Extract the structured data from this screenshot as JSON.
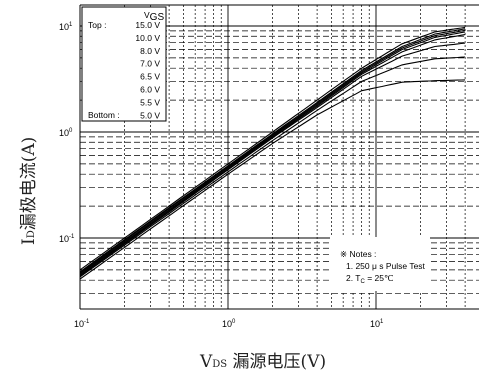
{
  "chart_data": {
    "type": "line",
    "x_scale": "log",
    "y_scale": "log",
    "xlim": [
      0.1,
      40
    ],
    "ylim": [
      0.02,
      17
    ],
    "grid": true,
    "xlabel": {
      "main": "V",
      "sub": "DS",
      "rest": " 漏源电压(V)"
    },
    "ylabel": {
      "main": "I",
      "sub": "D",
      "rest": "漏极电流(A)"
    },
    "x_ticks": [
      {
        "value": 0.1,
        "base": "10",
        "exp": "-1"
      },
      {
        "value": 1,
        "base": "10",
        "exp": "0"
      },
      {
        "value": 10,
        "base": "10",
        "exp": "1"
      }
    ],
    "y_ticks": [
      {
        "value": 0.1,
        "base": "10",
        "exp": "-1"
      },
      {
        "value": 1,
        "base": "10",
        "exp": "0"
      },
      {
        "value": 10,
        "base": "10",
        "exp": "1"
      }
    ],
    "legend": {
      "placement": "top-left",
      "header": "V",
      "header_sub": "GS",
      "top_label": "Top :",
      "bottom_label": "Bottom :",
      "entries": [
        "15.0 V",
        "10.0 V",
        "8.0 V",
        "7.0 V",
        "6.5 V",
        "6.0 V",
        "5.5 V",
        "5.0 V"
      ]
    },
    "notes": {
      "title": "※ Notes :",
      "line1": "1. 250 μ s Pulse Test",
      "line2_pre": "2. T",
      "line2_sub": "C",
      "line2_post": " = 25℃"
    },
    "series": [
      {
        "x": [
          0.1,
          0.3,
          1,
          2,
          4,
          8,
          15,
          25,
          40
        ],
        "y": [
          0.05,
          0.15,
          0.5,
          1.0,
          2.0,
          4.0,
          6.8,
          8.8,
          9.7
        ]
      },
      {
        "x": [
          0.1,
          0.3,
          1,
          2,
          4,
          8,
          15,
          25,
          40
        ],
        "y": [
          0.048,
          0.145,
          0.48,
          0.96,
          1.9,
          3.8,
          6.4,
          8.4,
          9.4
        ]
      },
      {
        "x": [
          0.1,
          0.3,
          1,
          2,
          4,
          8,
          15,
          25,
          40
        ],
        "y": [
          0.047,
          0.142,
          0.47,
          0.94,
          1.85,
          3.7,
          6.2,
          8.1,
          9.1
        ]
      },
      {
        "x": [
          0.1,
          0.3,
          1,
          2,
          4,
          8,
          15,
          25,
          40
        ],
        "y": [
          0.046,
          0.138,
          0.46,
          0.92,
          1.8,
          3.6,
          6.0,
          7.8,
          8.8
        ]
      },
      {
        "x": [
          0.1,
          0.3,
          1,
          2,
          4,
          8,
          15,
          25,
          40
        ],
        "y": [
          0.045,
          0.135,
          0.45,
          0.9,
          1.75,
          3.5,
          5.7,
          7.4,
          8.3
        ]
      },
      {
        "x": [
          0.1,
          0.3,
          1,
          2,
          4,
          8,
          15,
          25,
          40
        ],
        "y": [
          0.044,
          0.132,
          0.44,
          0.88,
          1.7,
          3.35,
          5.2,
          6.4,
          6.9
        ]
      },
      {
        "x": [
          0.1,
          0.3,
          1,
          2,
          4,
          8,
          15,
          25,
          40
        ],
        "y": [
          0.043,
          0.128,
          0.42,
          0.83,
          1.6,
          3.0,
          4.3,
          4.9,
          5.1
        ]
      },
      {
        "x": [
          0.1,
          0.3,
          1,
          2,
          4,
          8,
          15,
          25,
          40
        ],
        "y": [
          0.041,
          0.122,
          0.4,
          0.78,
          1.45,
          2.45,
          2.95,
          3.05,
          3.1
        ]
      }
    ],
    "colors": {
      "line": "#000000",
      "grid": "#000000",
      "background": "#ffffff"
    }
  }
}
